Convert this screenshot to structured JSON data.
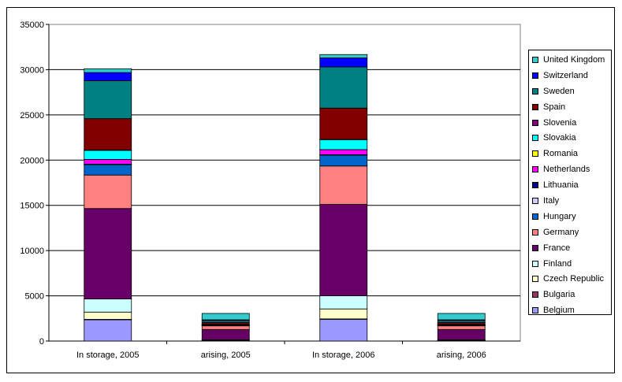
{
  "chart_data": {
    "type": "bar",
    "stacked": true,
    "title": "",
    "xlabel": "",
    "ylabel": "",
    "ylim": [
      0,
      35000
    ],
    "yticks": [
      0,
      5000,
      10000,
      15000,
      20000,
      25000,
      30000,
      35000
    ],
    "grid": true,
    "legend_position": "right",
    "categories": [
      "In storage, 2005",
      "arising, 2005",
      "In storage, 2006",
      "arising, 2006"
    ],
    "series": [
      {
        "name": "Belgium",
        "color": "#9999ff",
        "values": [
          2350,
          50,
          2400,
          50
        ]
      },
      {
        "name": "Bulgaria",
        "color": "#993366",
        "values": [
          50,
          20,
          50,
          20
        ]
      },
      {
        "name": "Czech Republic",
        "color": "#ffffcc",
        "values": [
          800,
          20,
          1100,
          20
        ]
      },
      {
        "name": "Finland",
        "color": "#ccffff",
        "values": [
          1450,
          40,
          1450,
          40
        ]
      },
      {
        "name": "France",
        "color": "#660066",
        "values": [
          10000,
          1150,
          10100,
          1150
        ]
      },
      {
        "name": "Germany",
        "color": "#ff8080",
        "values": [
          3700,
          400,
          4250,
          400
        ]
      },
      {
        "name": "Hungary",
        "color": "#0066cc",
        "values": [
          1150,
          50,
          1200,
          50
        ]
      },
      {
        "name": "Italy",
        "color": "#ccccff",
        "values": [
          20,
          10,
          20,
          10
        ]
      },
      {
        "name": "Lithuania",
        "color": "#000080",
        "values": [
          30,
          20,
          30,
          20
        ]
      },
      {
        "name": "Netherlands",
        "color": "#ff00ff",
        "values": [
          520,
          30,
          550,
          30
        ]
      },
      {
        "name": "Romania",
        "color": "#ffff00",
        "values": [
          10,
          10,
          10,
          10
        ]
      },
      {
        "name": "Slovakia",
        "color": "#00ffff",
        "values": [
          1000,
          50,
          1100,
          50
        ]
      },
      {
        "name": "Slovenia",
        "color": "#800080",
        "values": [
          30,
          10,
          30,
          10
        ]
      },
      {
        "name": "Spain",
        "color": "#800000",
        "values": [
          3470,
          200,
          3460,
          200
        ]
      },
      {
        "name": "Sweden",
        "color": "#008080",
        "values": [
          4200,
          200,
          4550,
          200
        ]
      },
      {
        "name": "Switzerland",
        "color": "#0000ff",
        "values": [
          900,
          90,
          1000,
          90
        ]
      },
      {
        "name": "United Kingdom",
        "color": "#33cccc",
        "values": [
          420,
          700,
          370,
          700
        ]
      }
    ]
  }
}
